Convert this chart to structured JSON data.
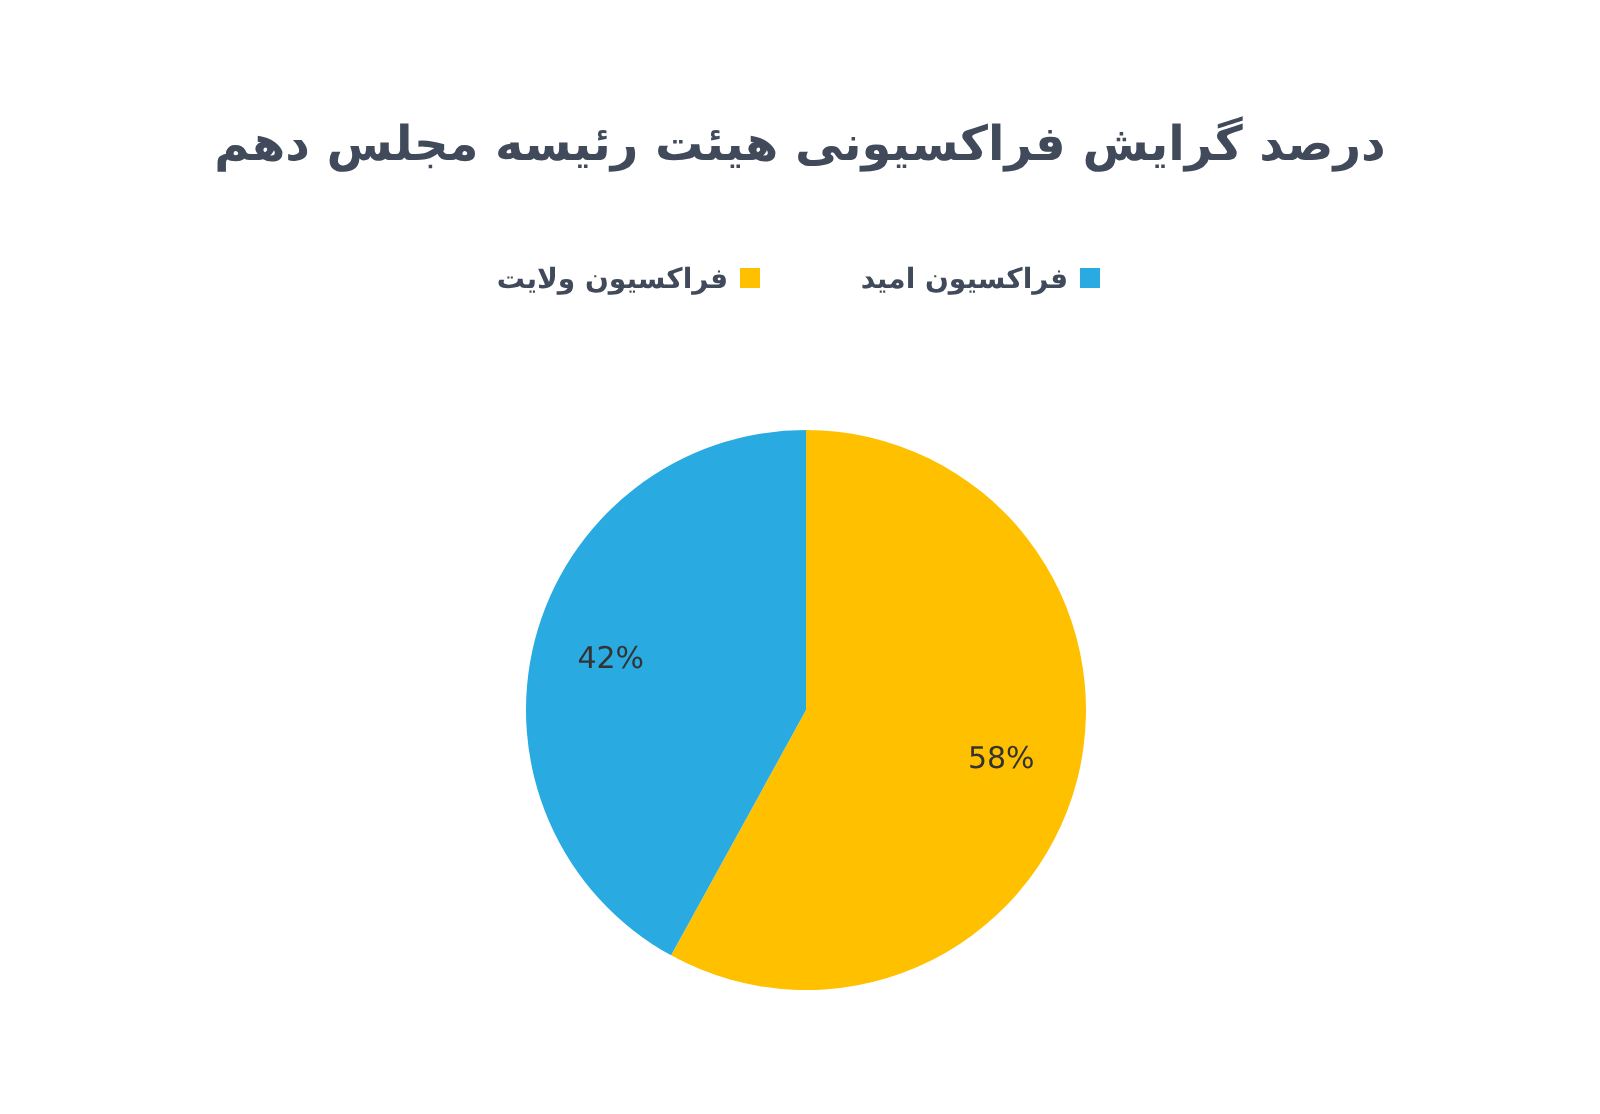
{
  "chart_data": {
    "type": "pie",
    "title": "درصد گرایش فراکسیونی هیئت رئیسه مجلس دهم",
    "categories": [
      "فراکسیون ولایت",
      "فراکسیون امید"
    ],
    "values": [
      58,
      42
    ],
    "colors": [
      "#ffc000",
      "#29abe2"
    ],
    "value_labels": [
      "58%",
      "42%"
    ],
    "legend": "top"
  }
}
